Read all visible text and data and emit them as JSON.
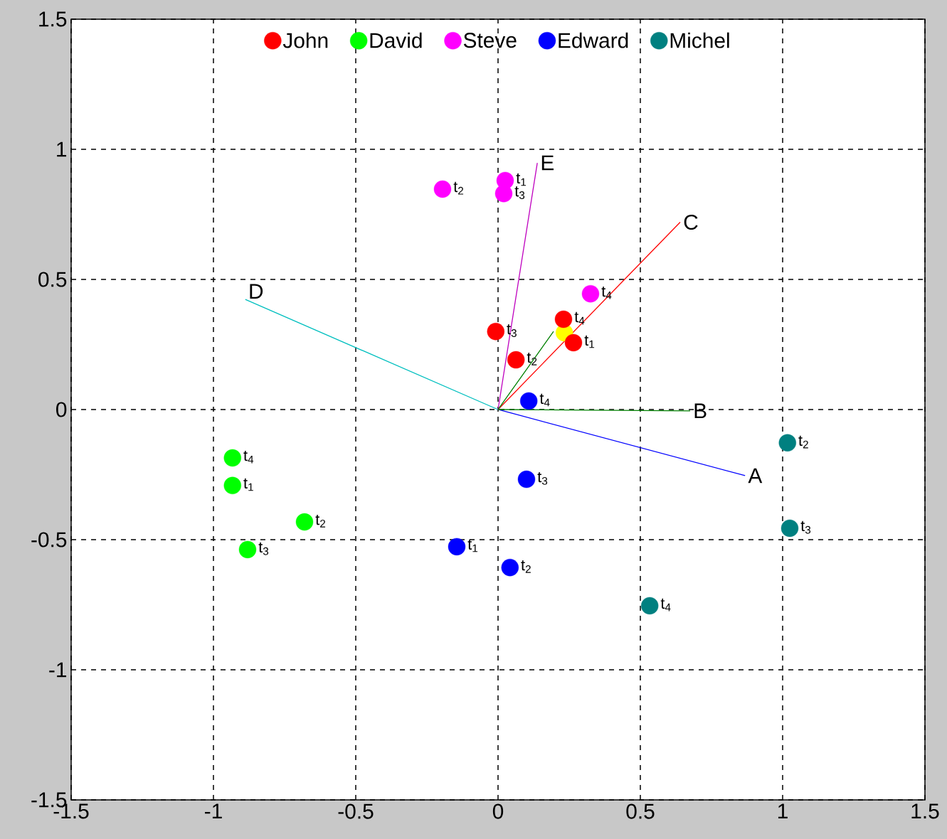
{
  "chart_data": {
    "type": "scatter",
    "xlim": [
      -1.5,
      1.5
    ],
    "ylim": [
      -1.5,
      1.5
    ],
    "xticks": [
      -1.5,
      -1,
      -0.5,
      0,
      0.5,
      1,
      1.5
    ],
    "yticks": [
      -1.5,
      -1,
      -0.5,
      0,
      0.5,
      1,
      1.5
    ],
    "grid": true,
    "legend": "top",
    "line_style": "solid",
    "series": [
      {
        "type": "line",
        "marker": "none",
        "name": "A",
        "color": "#0000ff",
        "x": [
          0,
          0.868
        ],
        "values": [
          0,
          -0.254
        ]
      },
      {
        "type": "line",
        "marker": "none",
        "name": "B",
        "color": "#008000",
        "x": [
          0,
          0.675
        ],
        "values": [
          0,
          -0.005
        ]
      },
      {
        "type": "line",
        "marker": "none",
        "name": "C",
        "color": "#ff0000",
        "x": [
          0,
          0.64
        ],
        "values": [
          0,
          0.72
        ]
      },
      {
        "type": "line",
        "marker": "none",
        "name": "D",
        "color": "#00bfbf",
        "x": [
          0,
          -0.888
        ],
        "values": [
          0,
          0.423
        ]
      },
      {
        "type": "line",
        "marker": "none",
        "name": "E",
        "color": "#bf00bf",
        "x": [
          0,
          0.138
        ],
        "values": [
          0,
          0.948
        ]
      },
      {
        "type": "line",
        "marker": "none",
        "color": "#008000",
        "x": [
          0,
          0.195
        ],
        "values": [
          0,
          0.3
        ]
      },
      {
        "marker": "circle",
        "color": "#ffff00",
        "x": [
          0.233
        ],
        "values": [
          0.295
        ]
      },
      {
        "marker": "circle",
        "name": "John",
        "color": "#ff0000",
        "x": [
          0.265,
          0.063,
          -0.008,
          0.23
        ],
        "values": [
          0.257,
          0.191,
          0.3,
          0.347
        ]
      },
      {
        "marker": "circle",
        "name": "David",
        "color": "#00ff00",
        "x": [
          -0.933,
          -0.68,
          -0.88,
          -0.933
        ],
        "values": [
          -0.292,
          -0.432,
          -0.538,
          -0.186
        ]
      },
      {
        "marker": "circle",
        "name": "Steve",
        "color": "#ff00ff",
        "x": [
          0.025,
          -0.195,
          0.02,
          0.325
        ],
        "values": [
          0.88,
          0.847,
          0.83,
          0.445
        ]
      },
      {
        "marker": "circle",
        "name": "Edward",
        "color": "#0000ff",
        "x": [
          -0.145,
          0.042,
          0.1,
          0.108
        ],
        "values": [
          -0.527,
          -0.607,
          -0.268,
          0.033
        ]
      },
      {
        "marker": "circle",
        "name": "Michel",
        "color": "#008080",
        "x": [
          1.017,
          1.025,
          0.533
        ],
        "values": [
          -0.128,
          -0.456,
          -0.754
        ]
      }
    ],
    "annotations": [
      {
        "text": "t$_{1}$",
        "x": 0.265,
        "y": 0.257
      },
      {
        "text": "t$_{2}$",
        "x": 0.063,
        "y": 0.191
      },
      {
        "text": "t$_{3}$",
        "x": -0.008,
        "y": 0.3
      },
      {
        "text": "t$_{4}$",
        "x": 0.23,
        "y": 0.347
      },
      {
        "text": "t$_{1}$",
        "x": -0.933,
        "y": -0.292
      },
      {
        "text": "t$_{2}$",
        "x": -0.68,
        "y": -0.432
      },
      {
        "text": "t$_{3}$",
        "x": -0.88,
        "y": -0.538
      },
      {
        "text": "t$_{4}$",
        "x": -0.933,
        "y": -0.186
      },
      {
        "text": "t$_{1}$",
        "x": 0.025,
        "y": 0.88
      },
      {
        "text": "t$_{2}$",
        "x": -0.195,
        "y": 0.847
      },
      {
        "text": "t$_{3}$",
        "x": 0.02,
        "y": 0.83
      },
      {
        "text": "t$_{4}$",
        "x": 0.325,
        "y": 0.445
      },
      {
        "text": "t$_{1}$",
        "x": -0.145,
        "y": -0.527
      },
      {
        "text": "t$_{2}$",
        "x": 0.042,
        "y": -0.607
      },
      {
        "text": "t$_{3}$",
        "x": 0.1,
        "y": -0.268
      },
      {
        "text": "t$_{4}$",
        "x": 0.108,
        "y": 0.033
      },
      {
        "text": "t$_{2}$",
        "x": 1.017,
        "y": -0.128
      },
      {
        "text": "t$_{3}$",
        "x": 1.025,
        "y": -0.456
      },
      {
        "text": "t$_{4}$",
        "x": 0.533,
        "y": -0.754
      }
    ]
  }
}
